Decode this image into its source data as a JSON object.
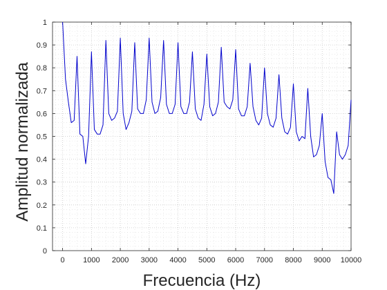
{
  "chart_data": {
    "type": "line",
    "title": "",
    "xlabel": "Frecuencia (Hz)",
    "ylabel": "Amplitud normalizada",
    "xlim": [
      -350,
      10000
    ],
    "ylim": [
      0,
      1
    ],
    "grid": true,
    "minor_grid": true,
    "x_ticks": [
      0,
      1000,
      2000,
      3000,
      4000,
      5000,
      6000,
      7000,
      8000,
      9000,
      10000
    ],
    "x_tick_labels": [
      "0",
      "1000",
      "2000",
      "3000",
      "4000",
      "5000",
      "6000",
      "7000",
      "8000",
      "9000",
      "10000"
    ],
    "y_ticks": [
      0,
      0.1,
      0.2,
      0.3,
      0.4,
      0.5,
      0.6,
      0.7,
      0.8,
      0.9,
      1
    ],
    "y_tick_labels": [
      "0",
      "0.1",
      "0.2",
      "0.3",
      "0.4",
      "0.5",
      "0.6",
      "0.7",
      "0.8",
      "0.9",
      "1"
    ],
    "line_color": "#0000cc",
    "series": [
      {
        "x": [
          0,
          100,
          200,
          300,
          400,
          500,
          600,
          700,
          800,
          900,
          1000,
          1100,
          1200,
          1300,
          1400,
          1500,
          1600,
          1700,
          1800,
          1900,
          2000,
          2100,
          2200,
          2300,
          2400,
          2500,
          2600,
          2700,
          2800,
          2900,
          3000,
          3100,
          3200,
          3300,
          3400,
          3500,
          3600,
          3700,
          3800,
          3900,
          4000,
          4100,
          4200,
          4300,
          4400,
          4500,
          4600,
          4700,
          4800,
          4900,
          5000,
          5100,
          5200,
          5300,
          5400,
          5500,
          5600,
          5700,
          5800,
          5900,
          6000,
          6100,
          6200,
          6300,
          6400,
          6500,
          6600,
          6700,
          6800,
          6900,
          7000,
          7100,
          7200,
          7300,
          7400,
          7500,
          7600,
          7700,
          7800,
          7900,
          8000,
          8100,
          8200,
          8300,
          8400,
          8500,
          8600,
          8700,
          8800,
          8900,
          9000,
          9100,
          9200,
          9300,
          9400,
          9500,
          9600,
          9700,
          9800,
          9900,
          10000
        ],
        "y": [
          1.0,
          0.75,
          0.65,
          0.56,
          0.57,
          0.85,
          0.51,
          0.5,
          0.38,
          0.5,
          0.87,
          0.53,
          0.51,
          0.51,
          0.55,
          0.92,
          0.6,
          0.57,
          0.58,
          0.61,
          0.93,
          0.6,
          0.53,
          0.56,
          0.61,
          0.91,
          0.62,
          0.6,
          0.6,
          0.66,
          0.93,
          0.65,
          0.6,
          0.61,
          0.67,
          0.92,
          0.64,
          0.6,
          0.6,
          0.64,
          0.91,
          0.63,
          0.6,
          0.6,
          0.65,
          0.87,
          0.62,
          0.58,
          0.57,
          0.64,
          0.86,
          0.63,
          0.59,
          0.6,
          0.65,
          0.89,
          0.65,
          0.63,
          0.62,
          0.66,
          0.88,
          0.62,
          0.59,
          0.59,
          0.63,
          0.82,
          0.63,
          0.57,
          0.55,
          0.58,
          0.8,
          0.6,
          0.55,
          0.54,
          0.58,
          0.77,
          0.58,
          0.52,
          0.51,
          0.54,
          0.73,
          0.52,
          0.48,
          0.5,
          0.49,
          0.71,
          0.5,
          0.41,
          0.42,
          0.46,
          0.6,
          0.39,
          0.32,
          0.31,
          0.25,
          0.52,
          0.42,
          0.4,
          0.42,
          0.46,
          0.66
        ]
      }
    ]
  }
}
